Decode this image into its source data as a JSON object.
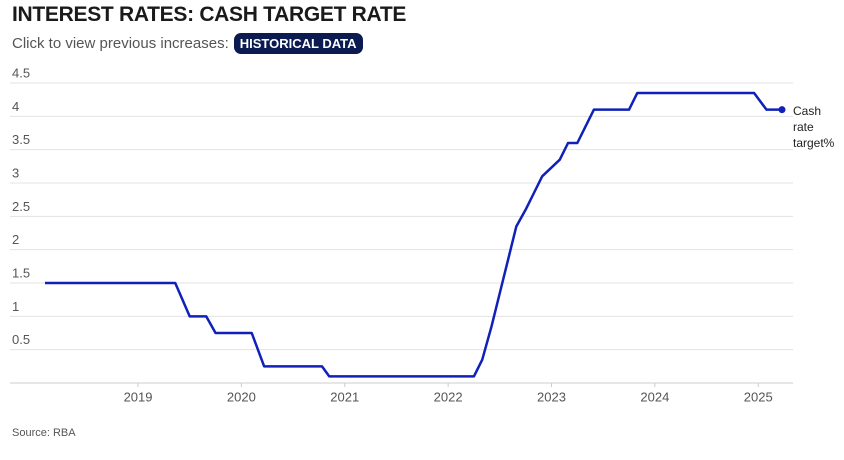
{
  "chart_data": {
    "type": "line",
    "title": "INTEREST RATES: CASH TARGET RATE",
    "subtitle": "Click to view previous increases:",
    "button": "HISTORICAL DATA",
    "source": "Source: RBA",
    "x": [
      2018.1,
      2019.36,
      2019.5,
      2019.66,
      2019.75,
      2020.1,
      2020.16,
      2020.22,
      2020.78,
      2020.85,
      2022.25,
      2022.33,
      2022.42,
      2022.5,
      2022.58,
      2022.66,
      2022.75,
      2022.83,
      2022.91,
      2023.08,
      2023.16,
      2023.25,
      2023.33,
      2023.41,
      2023.75,
      2023.83,
      2024.96,
      2025.08,
      2025.23
    ],
    "series": [
      {
        "name": "Cash rate target%",
        "color": "#1020b8",
        "values": [
          1.5,
          1.5,
          1.0,
          1.0,
          0.75,
          0.75,
          0.5,
          0.25,
          0.25,
          0.1,
          0.1,
          0.35,
          0.85,
          1.35,
          1.85,
          2.35,
          2.6,
          2.85,
          3.1,
          3.35,
          3.6,
          3.6,
          3.85,
          4.1,
          4.1,
          4.35,
          4.35,
          4.1,
          4.1
        ]
      }
    ],
    "xlim": [
      2018.1,
      2025.23
    ],
    "xticks": [
      2019,
      2020,
      2021,
      2022,
      2023,
      2024,
      2025
    ],
    "ylim": [
      0,
      4.5
    ],
    "yticks": [
      0.5,
      1,
      1.5,
      2,
      2.5,
      3,
      3.5,
      4,
      4.5
    ],
    "grid": true
  }
}
